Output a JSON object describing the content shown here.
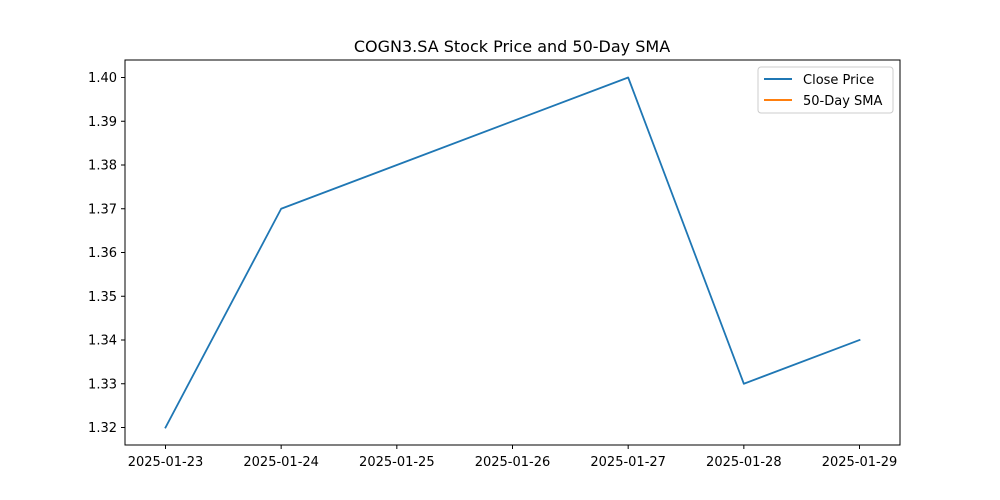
{
  "chart_data": {
    "type": "line",
    "title": "COGN3.SA Stock Price and 50-Day SMA",
    "xlabel": "",
    "ylabel": "",
    "x": [
      "2025-01-23",
      "2025-01-24",
      "2025-01-27",
      "2025-01-28",
      "2025-01-29"
    ],
    "x_ticks": [
      "2025-01-23",
      "2025-01-24",
      "2025-01-25",
      "2025-01-26",
      "2025-01-27",
      "2025-01-28",
      "2025-01-29"
    ],
    "y_ticks": [
      1.32,
      1.33,
      1.34,
      1.35,
      1.36,
      1.37,
      1.38,
      1.39,
      1.4
    ],
    "y_tick_labels": [
      "1.32",
      "1.33",
      "1.34",
      "1.35",
      "1.36",
      "1.37",
      "1.38",
      "1.39",
      "1.40"
    ],
    "xlim": [
      "2025-01-22",
      "2025-01-29"
    ],
    "ylim": [
      1.316,
      1.404
    ],
    "grid": false,
    "legend_position": "top-right",
    "series": [
      {
        "name": "Close Price",
        "color": "#1f77b4",
        "values": [
          1.32,
          1.37,
          1.4,
          1.33,
          1.34
        ]
      },
      {
        "name": "50-Day SMA",
        "color": "#ff7f0e",
        "values": [
          null,
          null,
          null,
          null,
          null
        ]
      }
    ]
  }
}
